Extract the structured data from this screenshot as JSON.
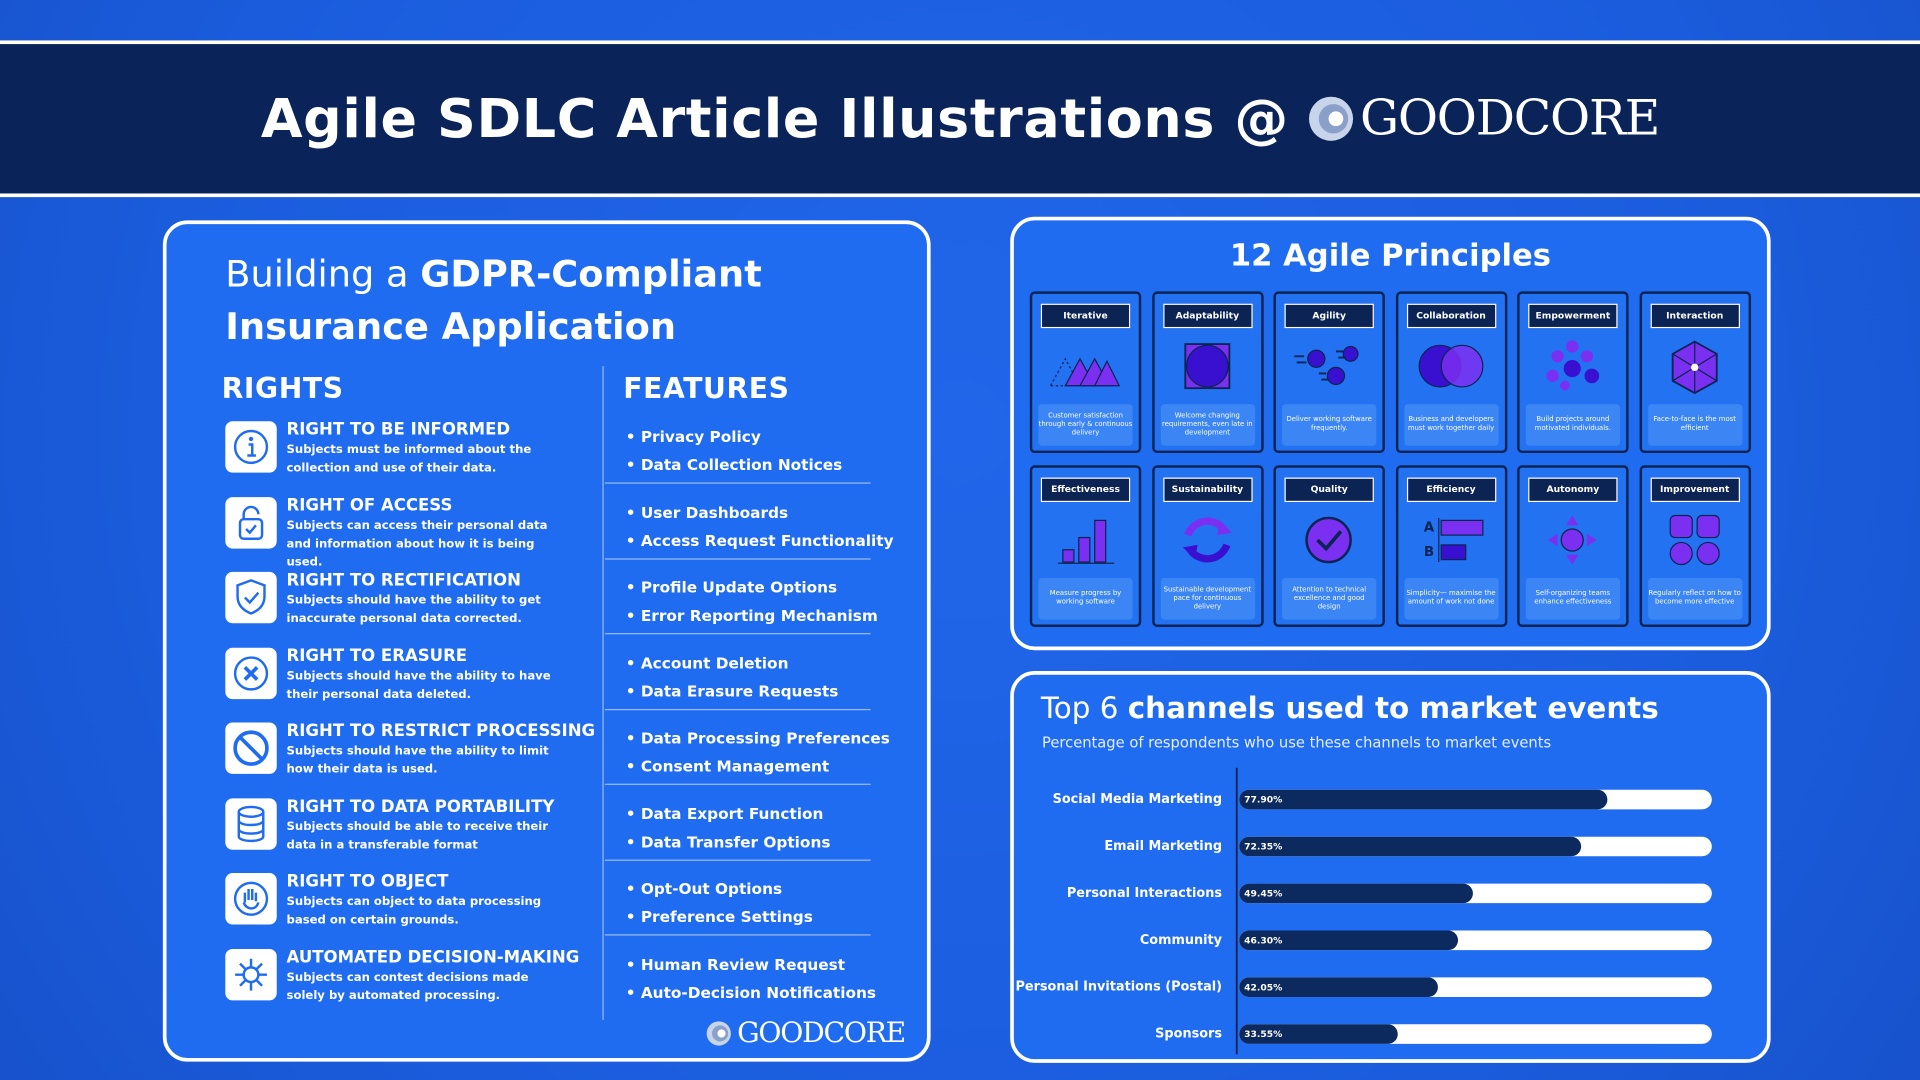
{
  "header": {
    "title": "Agile SDLC Article Illustrations @",
    "logo": "GOODCORE"
  },
  "gdpr": {
    "title_plain": "Building a",
    "title_bold": "GDPR-Compliant Insurance Application",
    "rights_heading": "RIGHTS",
    "features_heading": "FEATURES",
    "rows": [
      {
        "title": "RIGHT TO BE INFORMED",
        "desc": "Subjects must be informed about the collection and use of their data.",
        "features": [
          "Privacy Policy",
          "Data Collection Notices"
        ]
      },
      {
        "title": "RIGHT OF ACCESS",
        "desc": "Subjects can access their personal data and information about how it is being used.",
        "features": [
          "User Dashboards",
          "Access Request Functionality"
        ]
      },
      {
        "title": "RIGHT TO RECTIFICATION",
        "desc": "Subjects should have the ability to get inaccurate personal data corrected.",
        "features": [
          "Profile Update Options",
          "Error Reporting Mechanism"
        ]
      },
      {
        "title": "RIGHT TO ERASURE",
        "desc": "Subjects should have the ability to have their personal data deleted.",
        "features": [
          "Account Deletion",
          "Data Erasure Requests"
        ]
      },
      {
        "title": "RIGHT TO RESTRICT PROCESSING",
        "desc": "Subjects should have the ability to limit how their data is used.",
        "features": [
          "Data Processing Preferences",
          "Consent Management"
        ]
      },
      {
        "title": "RIGHT TO DATA PORTABILITY",
        "desc": "Subjects should be able to receive their data in a transferable format",
        "features": [
          "Data Export Function",
          "Data Transfer Options"
        ]
      },
      {
        "title": "RIGHT TO OBJECT",
        "desc": "Subjects can object to data processing based on certain grounds.",
        "features": [
          "Opt-Out Options",
          "Preference Settings"
        ]
      },
      {
        "title": "AUTOMATED DECISION-MAKING",
        "desc": "Subjects can contest decisions made solely by automated processing.",
        "features": [
          "Human Review Request",
          "Auto-Decision Notifications"
        ]
      }
    ],
    "logo": "GOODCORE"
  },
  "principles": {
    "title": "12 Agile Principles",
    "cards": [
      {
        "label": "Iterative",
        "caption": "Customer satisfaction through early & continuous delivery"
      },
      {
        "label": "Adaptability",
        "caption": "Welcome changing requirements, even late in development"
      },
      {
        "label": "Agility",
        "caption": "Deliver working software frequently."
      },
      {
        "label": "Collaboration",
        "caption": "Business and developers must work together daily"
      },
      {
        "label": "Empowerment",
        "caption": "Build projects around motivated individuals."
      },
      {
        "label": "Interaction",
        "caption": "Face-to-face is the most efficient"
      },
      {
        "label": "Effectiveness",
        "caption": "Measure progress by working software"
      },
      {
        "label": "Sustainability",
        "caption": "Sustainable development pace for continuous delivery"
      },
      {
        "label": "Quality",
        "caption": "Attention to technical excellence and good design"
      },
      {
        "label": "Efficiency",
        "caption": "Simplicity— maximise the amount of work not done",
        "icon_labels": [
          "A",
          "B"
        ]
      },
      {
        "label": "Autonomy",
        "caption": "Self-organizing teams enhance effectiveness"
      },
      {
        "label": "Improvement",
        "caption": "Regularly reflect on how to become more effective"
      }
    ]
  },
  "chart_data": {
    "type": "bar",
    "orientation": "horizontal",
    "title_plain": "Top 6",
    "title_bold": "channels used to market events",
    "subtitle": "Percentage of respondents who use these channels to market events",
    "categories": [
      "Social Media Marketing",
      "Email Marketing",
      "Personal Interactions",
      "Community",
      "Personal Invitations (Postal)",
      "Sponsors"
    ],
    "values": [
      77.9,
      72.35,
      49.45,
      46.3,
      42.05,
      33.55
    ],
    "value_labels": [
      "77.90%",
      "72.35%",
      "49.45%",
      "46.30%",
      "42.05%",
      "33.55%"
    ],
    "xlim": [
      0,
      100
    ],
    "color": "#0c2a5e",
    "track_color": "#ffffff"
  }
}
